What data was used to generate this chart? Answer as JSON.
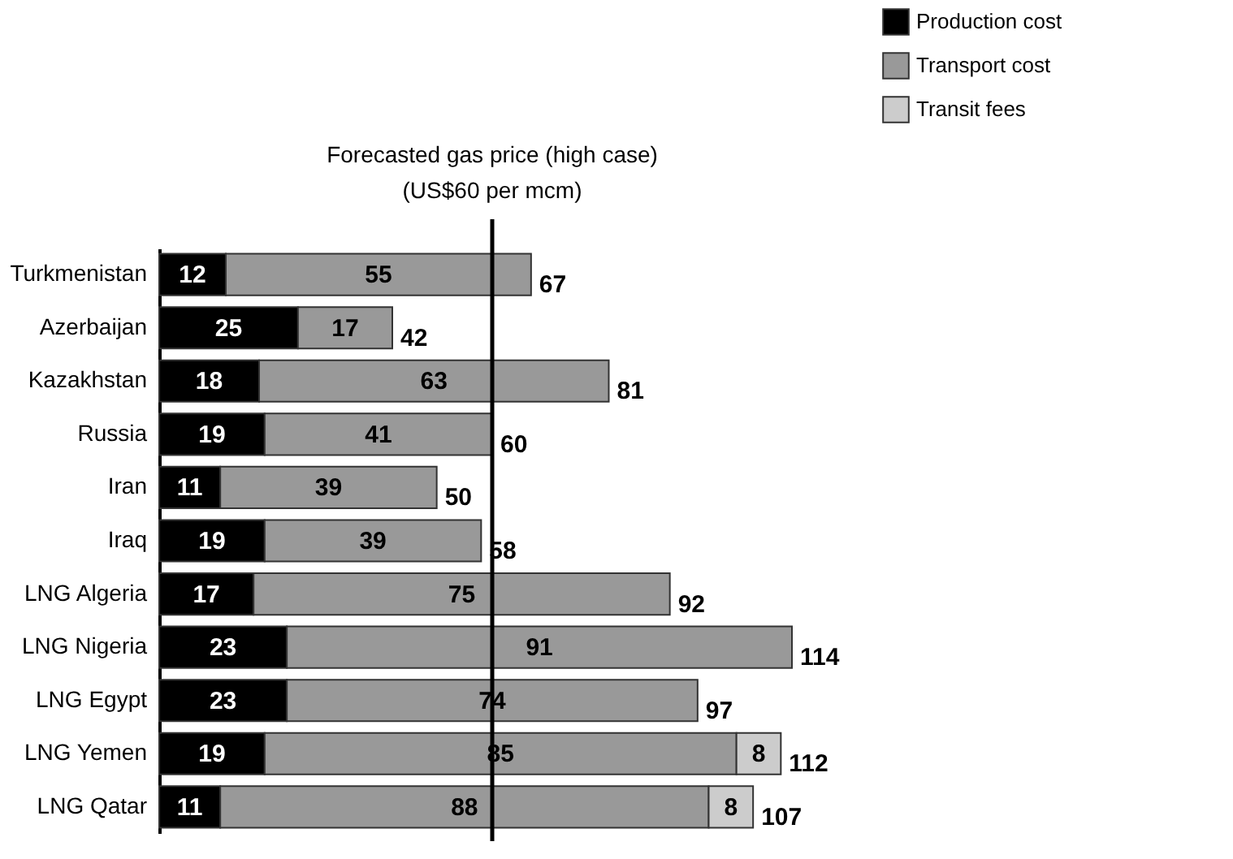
{
  "chart_data": {
    "type": "bar",
    "orientation": "horizontal",
    "stacked": true,
    "data_labels": true,
    "legend": "top right",
    "grid": false,
    "tick_labels": "y",
    "categories": [
      "Turkmenistan",
      "Azerbaijan",
      "Kazakhstan",
      "Russia",
      "Iran",
      "Iraq",
      "LNG Algeria",
      "LNG Nigeria",
      "LNG Egypt",
      "LNG Yemen",
      "LNG Qatar"
    ],
    "series": [
      {
        "name": "Production cost",
        "color": "#000000",
        "values": [
          12,
          25,
          18,
          19,
          11,
          19,
          17,
          23,
          23,
          19,
          11
        ]
      },
      {
        "name": "Transport cost",
        "color": "#999999",
        "values": [
          55,
          17,
          63,
          41,
          39,
          39,
          75,
          91,
          74,
          85,
          88
        ]
      },
      {
        "name": "Transit fees",
        "color": "#cccccc",
        "values": [
          null,
          null,
          null,
          null,
          null,
          null,
          null,
          null,
          null,
          8,
          8
        ]
      }
    ],
    "totals": [
      "67",
      "42",
      "81",
      "60",
      "50",
      "58",
      "92",
      "114",
      "97",
      "112",
      "107"
    ],
    "ref_lines": [
      {
        "axis": "x",
        "value": 60,
        "label": "Forecasted gas price (high case)\n(US$60 per mcm)",
        "color": "#000000"
      }
    ]
  }
}
